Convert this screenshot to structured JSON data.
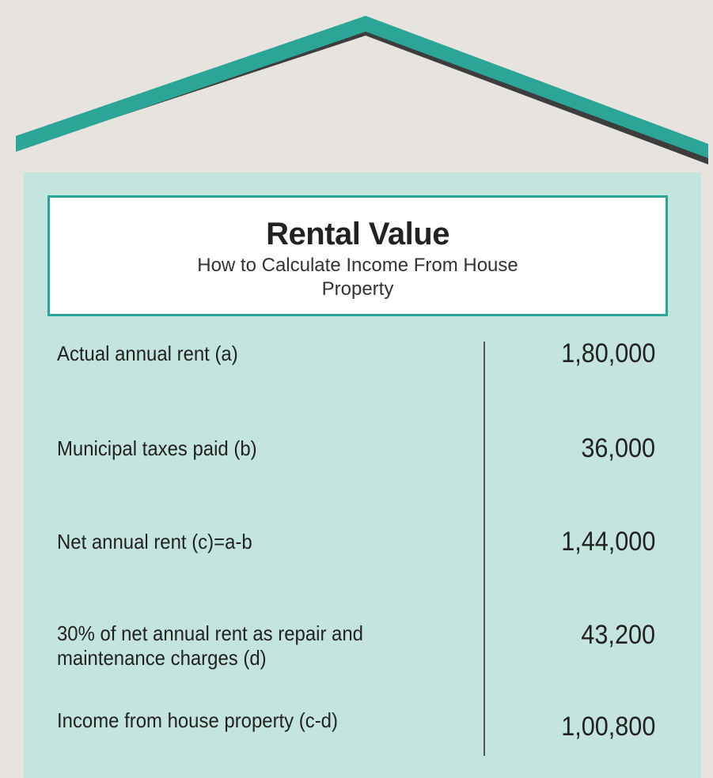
{
  "header": {
    "title": "Rental Value",
    "subtitle": "How to Calculate Income From House Property"
  },
  "table": {
    "rows": [
      [
        "Actual annual rent (a)",
        "1,80,000"
      ],
      [
        "Municipal taxes paid (b)",
        "36,000"
      ],
      [
        "Net annual rent (c)=a-b",
        "1,44,000"
      ],
      [
        "30% of net annual rent as repair and maintenance charges (d)",
        "43,200"
      ],
      [
        "Income from house property (c-d)",
        "1,00,800"
      ]
    ]
  }
}
